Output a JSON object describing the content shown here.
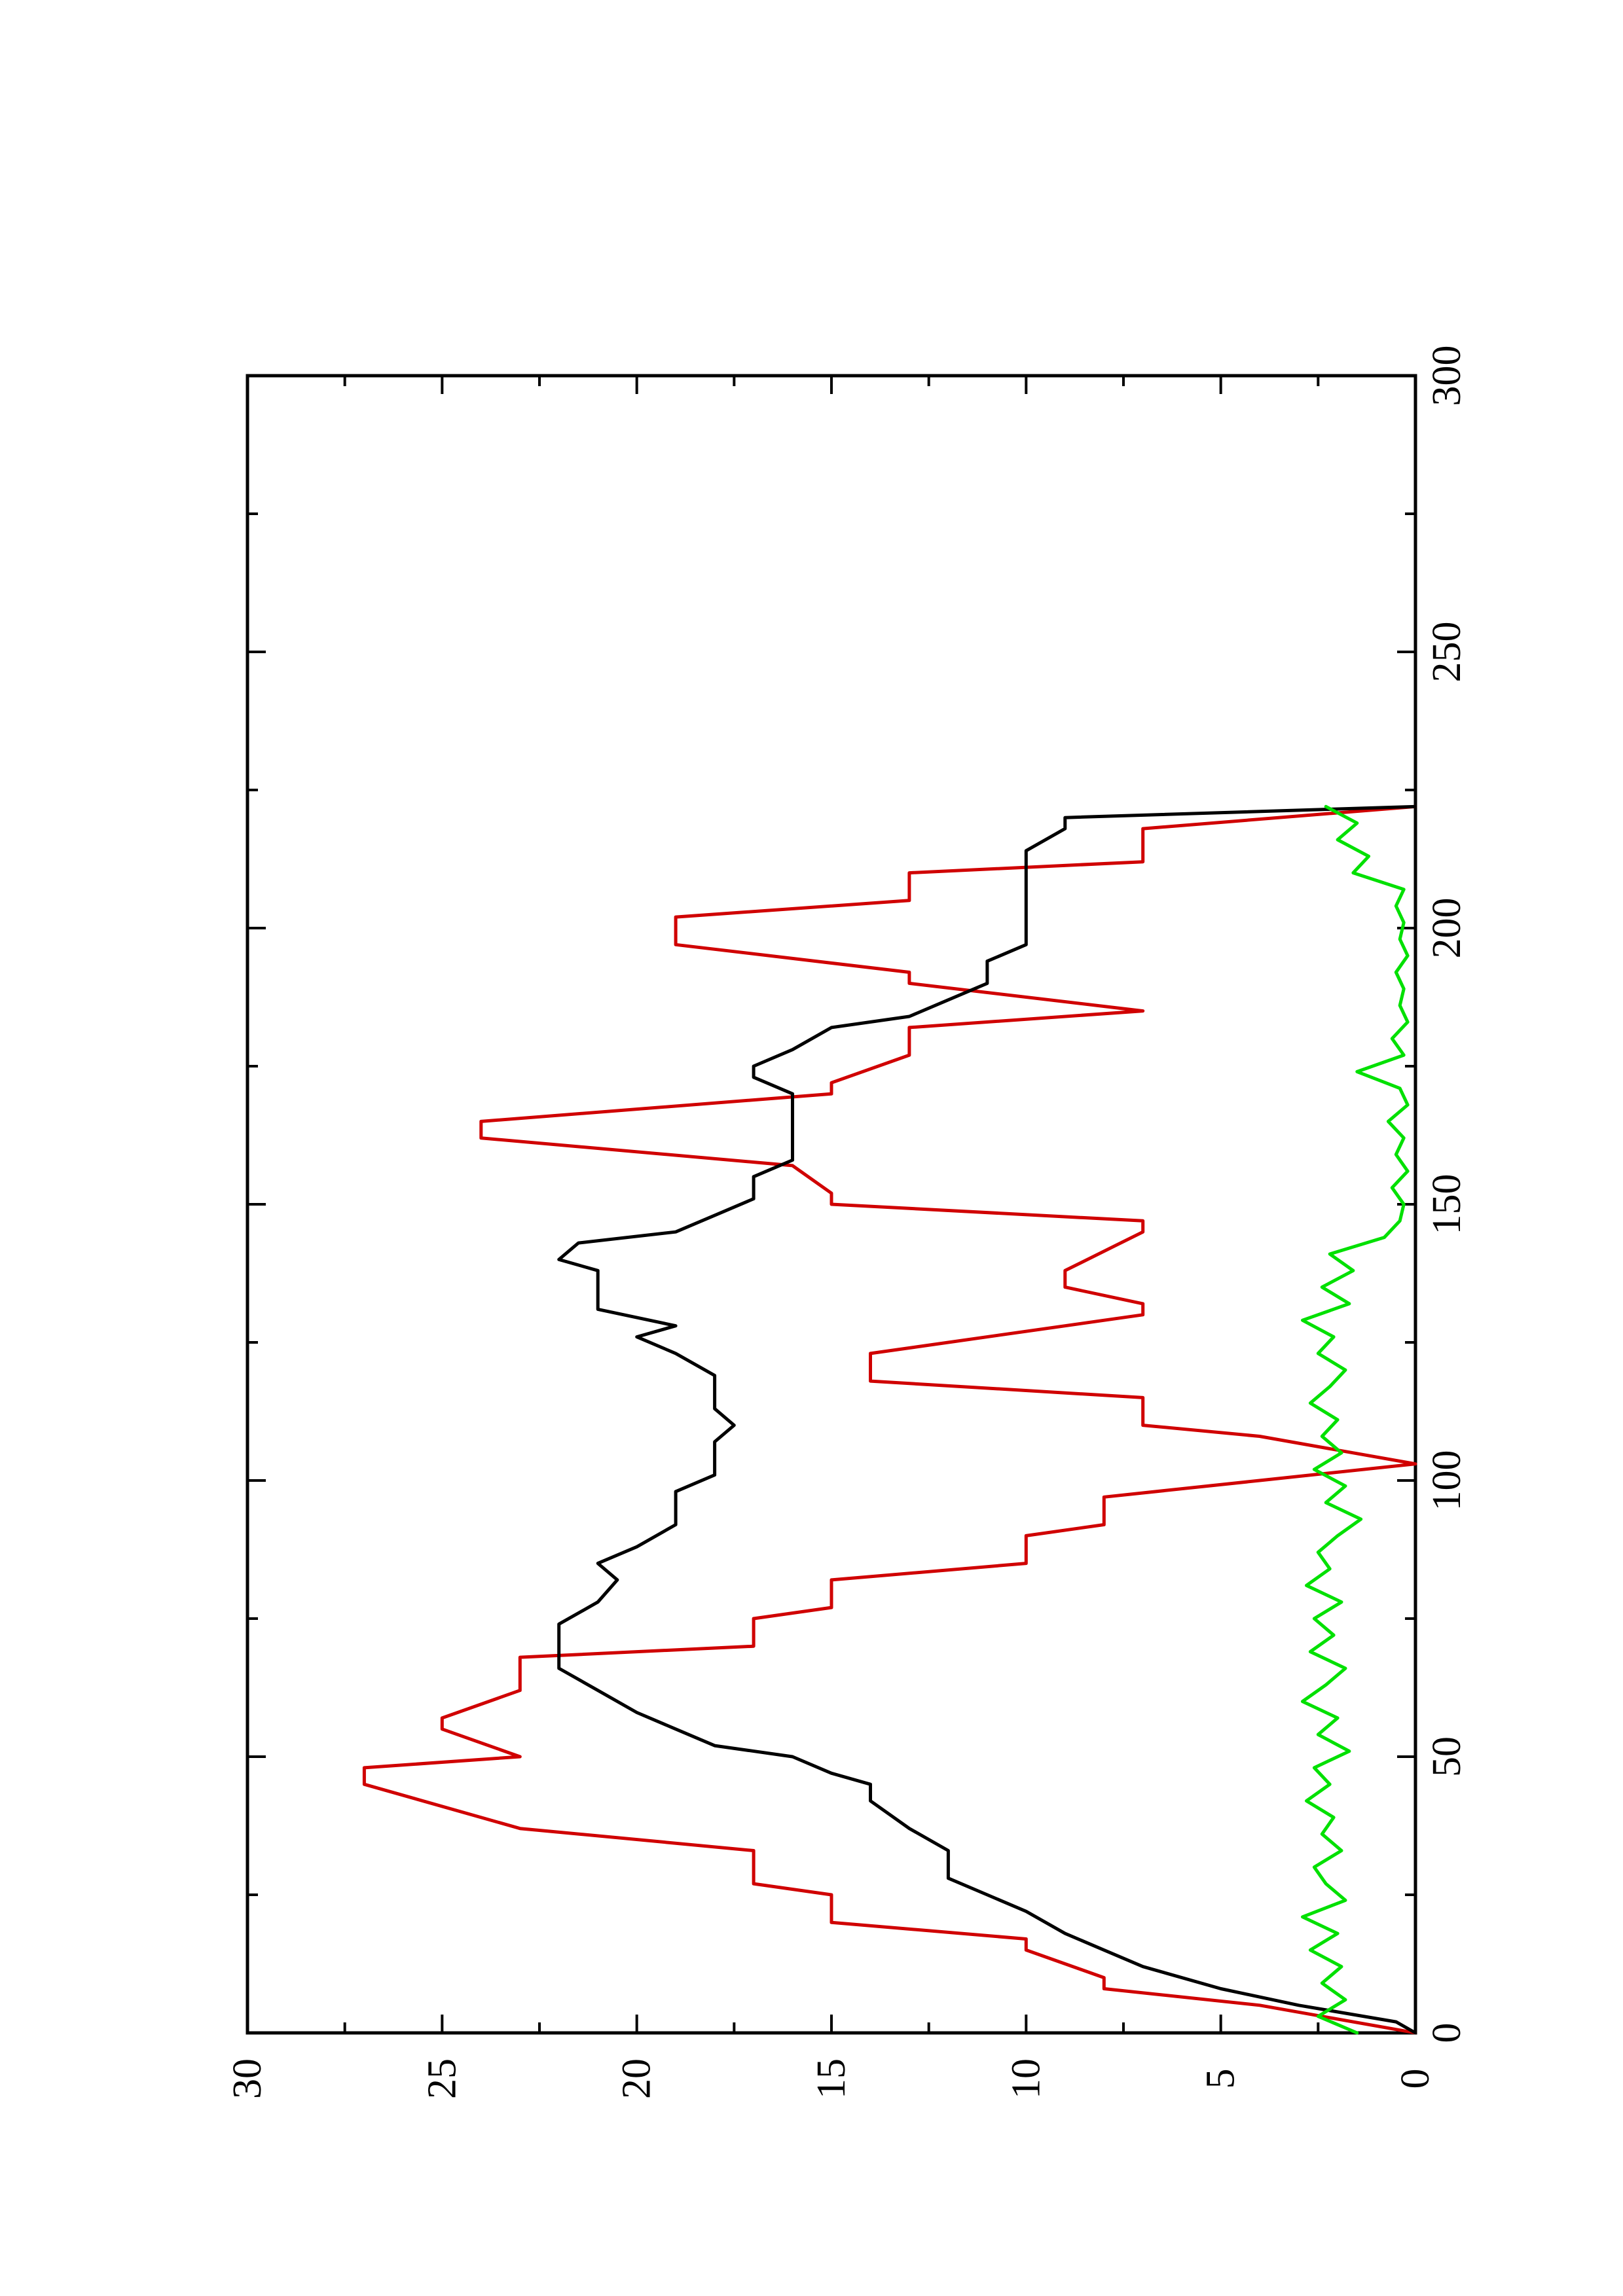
{
  "chart_data": {
    "type": "line",
    "orientation": "rotated-90-ccw",
    "title": "",
    "xlabel": "",
    "ylabel": "",
    "xlim": [
      0,
      300
    ],
    "ylim": [
      0,
      30
    ],
    "x_ticks": [
      0,
      50,
      100,
      150,
      200,
      250,
      300
    ],
    "y_ticks": [
      0,
      5,
      10,
      15,
      20,
      25,
      30
    ],
    "grid": false,
    "legend": "none",
    "series": [
      {
        "color": "#d00000",
        "x": [
          0,
          5,
          8,
          10,
          15,
          17,
          20,
          25,
          27,
          33,
          37,
          45,
          48,
          50,
          55,
          57,
          62,
          68,
          70,
          75,
          77,
          82,
          85,
          90,
          92,
          97,
          100,
          103,
          108,
          110,
          115,
          118,
          123,
          130,
          132,
          135,
          138,
          145,
          147,
          150,
          152,
          157,
          162,
          165,
          170,
          172,
          177,
          182,
          185,
          190,
          192,
          197,
          202,
          205,
          210,
          212,
          218,
          222
        ],
        "y": [
          0,
          4,
          8,
          8,
          10,
          10,
          15,
          15,
          17,
          17,
          23,
          27,
          27,
          23,
          25,
          25,
          23,
          23,
          17,
          17,
          15,
          15,
          10,
          10,
          8,
          8,
          4,
          0,
          4,
          7,
          7,
          14,
          14,
          7,
          7,
          9,
          9,
          7,
          7,
          15,
          15,
          16,
          24,
          24,
          15,
          15,
          13,
          13,
          7,
          13,
          13,
          19,
          19,
          13,
          13,
          7,
          7,
          0
        ]
      },
      {
        "color": "#000000",
        "x": [
          0,
          2,
          5,
          8,
          12,
          15,
          18,
          22,
          25,
          28,
          30,
          33,
          37,
          42,
          45,
          47,
          50,
          52,
          55,
          58,
          62,
          66,
          70,
          72,
          74,
          76,
          78,
          82,
          85,
          88,
          92,
          96,
          98,
          101,
          104,
          107,
          110,
          113,
          116,
          119,
          123,
          126,
          128,
          131,
          135,
          138,
          140,
          143,
          145,
          148,
          151,
          155,
          158,
          162,
          165,
          170,
          173,
          175,
          178,
          182,
          184,
          187,
          190,
          194,
          197,
          202,
          206,
          210,
          214,
          218,
          220,
          222
        ],
        "y": [
          0,
          0.5,
          3,
          5,
          7,
          8,
          9,
          10,
          11,
          12,
          12,
          12,
          13,
          14,
          14,
          15,
          16,
          18,
          19,
          20,
          21,
          22,
          22,
          22,
          22,
          21.5,
          21,
          20.5,
          21,
          20,
          19,
          19,
          19,
          18,
          18,
          18,
          17.5,
          18,
          18,
          18,
          19,
          20,
          19,
          21,
          21,
          21,
          22,
          21.5,
          19,
          18,
          17,
          17,
          16,
          16,
          16,
          16,
          17,
          17,
          16,
          15,
          13,
          12,
          11,
          11,
          10,
          10,
          10,
          10,
          10,
          9,
          9,
          0
        ]
      },
      {
        "color": "#00e000",
        "x": [
          0,
          3,
          6,
          9,
          12,
          15,
          18,
          21,
          24,
          27,
          30,
          33,
          36,
          39,
          42,
          45,
          48,
          51,
          54,
          57,
          60,
          63,
          66,
          69,
          72,
          75,
          78,
          81,
          84,
          87,
          90,
          93,
          96,
          99,
          102,
          105,
          108,
          111,
          114,
          117,
          120,
          123,
          126,
          129,
          132,
          135,
          138,
          141,
          144,
          147,
          150,
          153,
          156,
          159,
          162,
          165,
          168,
          171,
          174,
          177,
          180,
          183,
          186,
          189,
          192,
          195,
          198,
          201,
          204,
          207,
          210,
          213,
          216,
          219,
          222
        ],
        "y": [
          1.5,
          2.5,
          1.8,
          2.4,
          1.9,
          2.7,
          2.0,
          2.9,
          1.8,
          2.3,
          2.6,
          1.9,
          2.4,
          2.1,
          2.8,
          2.2,
          2.6,
          1.7,
          2.5,
          2.0,
          2.9,
          2.3,
          1.8,
          2.7,
          2.1,
          2.6,
          1.9,
          2.8,
          2.2,
          2.5,
          2.0,
          1.4,
          2.3,
          1.8,
          2.6,
          1.9,
          2.4,
          2.0,
          2.7,
          2.2,
          1.8,
          2.5,
          2.1,
          2.9,
          1.7,
          2.4,
          1.6,
          2.2,
          0.8,
          0.4,
          0.3,
          0.6,
          0.2,
          0.5,
          0.3,
          0.7,
          0.2,
          0.4,
          1.5,
          0.3,
          0.6,
          0.2,
          0.4,
          0.3,
          0.5,
          0.2,
          0.4,
          0.3,
          0.5,
          0.3,
          1.6,
          1.2,
          2.0,
          1.5,
          2.3
        ]
      }
    ]
  }
}
